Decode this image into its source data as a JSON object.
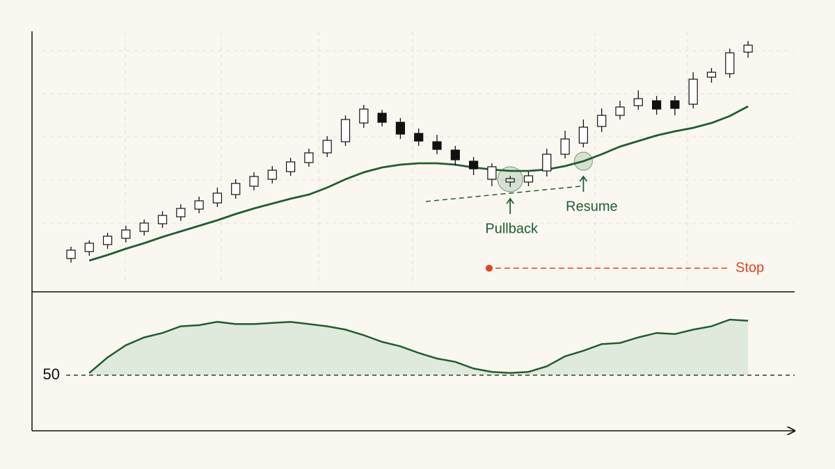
{
  "chart_data": {
    "type": "candlestick",
    "price": {
      "ylim": [
        0,
        370
      ],
      "color_up": "#ffffff",
      "color_down": "#111111",
      "ma_color": "#1e5e30",
      "open": [
        43,
        53,
        63,
        72,
        82,
        93,
        103,
        114,
        123,
        135,
        147,
        157,
        168,
        181,
        195,
        211,
        238,
        252,
        239,
        223,
        211,
        199,
        183,
        157,
        153,
        153,
        169,
        193,
        209,
        233,
        249,
        263,
        270,
        270,
        265,
        304,
        309,
        340
      ],
      "high": [
        60,
        69,
        80,
        90,
        99,
        111,
        121,
        132,
        145,
        157,
        167,
        176,
        188,
        201,
        219,
        249,
        264,
        257,
        245,
        230,
        221,
        205,
        189,
        180,
        162,
        168,
        201,
        227,
        243,
        259,
        270,
        285,
        277,
        277,
        311,
        317,
        345,
        356
      ],
      "low": [
        37,
        47,
        57,
        66,
        76,
        87,
        97,
        108,
        117,
        129,
        141,
        151,
        162,
        175,
        189,
        205,
        231,
        233,
        215,
        205,
        193,
        177,
        163,
        147,
        146,
        147,
        161,
        187,
        203,
        225,
        243,
        257,
        250,
        249,
        259,
        296,
        303,
        332
      ],
      "close": [
        55,
        65,
        75,
        84,
        94,
        105,
        115,
        126,
        137,
        151,
        161,
        170,
        182,
        195,
        213,
        243,
        258,
        239,
        222,
        212,
        200,
        185,
        172,
        175,
        158,
        162,
        193,
        215,
        232,
        249,
        261,
        273,
        258,
        259,
        301,
        311,
        339,
        350
      ],
      "ma": [
        null,
        40,
        48,
        57,
        65,
        74,
        82,
        90,
        98,
        107,
        115,
        122,
        129,
        135,
        145,
        157,
        167,
        174,
        178,
        180,
        180,
        178,
        174,
        171,
        169,
        169,
        171,
        176,
        183,
        193,
        204,
        212,
        220,
        226,
        231,
        238,
        248,
        262
      ],
      "annotations": [
        {
          "text": "Pullback",
          "x": 24,
          "y": 157
        },
        {
          "text": "Resume",
          "x": 28,
          "y": 183
        }
      ],
      "stop": {
        "text": "Stop",
        "value": 29,
        "color": "#e0451b"
      }
    },
    "oscillator": {
      "ylim": [
        0,
        125
      ],
      "yticks": [
        50
      ],
      "color": "#1e5e30",
      "fill": "#dfeadc",
      "values": [
        null,
        52,
        66,
        77,
        84,
        88,
        94,
        95,
        98,
        96,
        96,
        97,
        98,
        96,
        94,
        91,
        86,
        80,
        76,
        70,
        65,
        62,
        56,
        53,
        52,
        53,
        58,
        67,
        72,
        78,
        79,
        84,
        88,
        87,
        91,
        94,
        100,
        99
      ]
    }
  }
}
